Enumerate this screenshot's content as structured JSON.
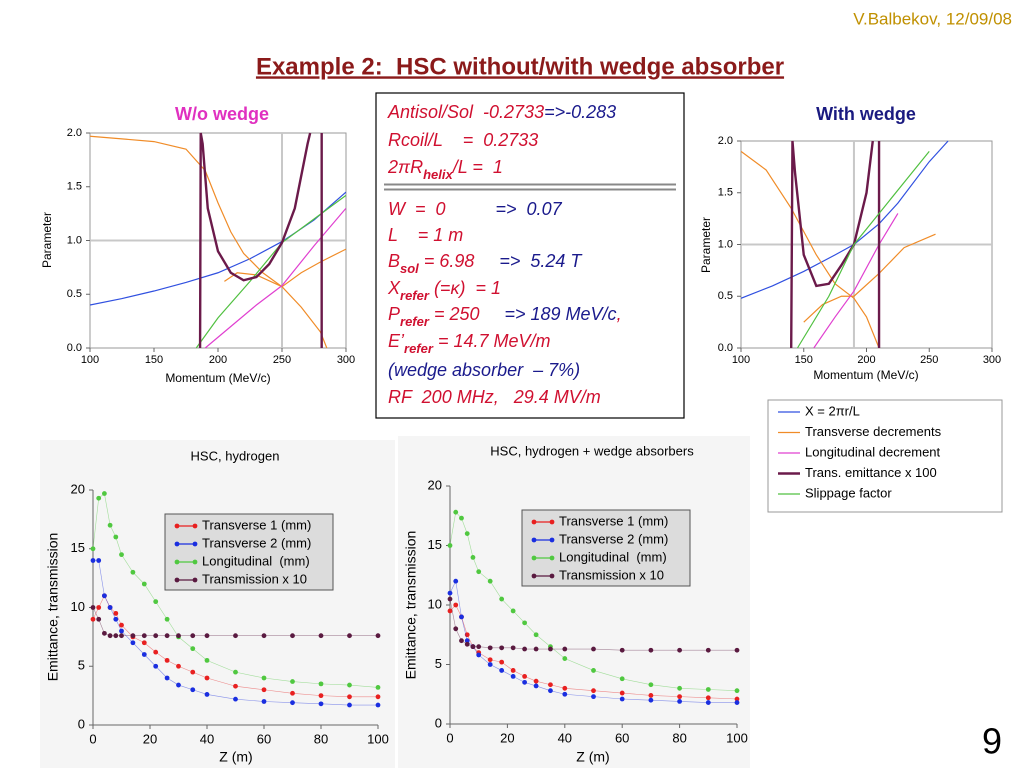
{
  "author_date": "V.Balbekov, 12/09/08",
  "slide_title": "Example 2:  HSC without/with wedge absorber",
  "page_number": "9",
  "info_box": {
    "color": "#d01030",
    "top": [
      [
        "Antisol/Sol  -0.2733",
        {
          "text": "=>-0.283",
          "color": "#1a1a8c"
        }
      ],
      [
        "Rcoil/L    =  0.2733"
      ],
      [
        "2πR",
        {
          "sub": "helix"
        },
        "/L =  1"
      ]
    ],
    "bottom": [
      [
        "W  =  0",
        {
          "text": "          =>  0.07",
          "color": "#1a1a8c"
        }
      ],
      [
        "L    = 1 m"
      ],
      [
        "B",
        {
          "sub": "sol"
        },
        " = 6.98",
        {
          "text": "     =>  5.24 T",
          "color": "#1a1a8c"
        }
      ],
      [
        "X",
        {
          "sub": "refer"
        },
        " (=κ)  = 1"
      ],
      [
        "P",
        {
          "sub": "refer"
        },
        " = 250",
        {
          "text": "     => 189 MeV/c",
          "color": "#1a1a8c"
        },
        ","
      ],
      [
        "E’",
        {
          "sub": "refer"
        },
        " = 14.7 MeV/m"
      ],
      [
        {
          "text": "(wedge absorber  – 7%)",
          "color": "#1a1a8c"
        }
      ],
      [
        "RF  200 MHz,   29.4 MV/m"
      ]
    ]
  },
  "chart_data": [
    {
      "type": "line",
      "title": "W/o wedge",
      "title_color": "#e030c0",
      "x_label": "Momentum (MeV/c)",
      "y_label": "Parameter",
      "xlim": [
        100,
        300
      ],
      "ylim": [
        0,
        2
      ],
      "xticks": [
        100,
        150,
        200,
        250,
        300
      ],
      "yticks": [
        {
          "value": 0,
          "label": "0.0"
        },
        {
          "value": 0.5,
          "label": "0.5"
        },
        {
          "value": 1,
          "label": "1.0"
        },
        {
          "value": 1.5,
          "label": "1.5"
        },
        {
          "value": 2,
          "label": "2.0"
        }
      ],
      "xref": 250,
      "yref": 1,
      "series": [
        {
          "color": "#3050e0",
          "x": [
            100,
            125,
            150,
            175,
            200,
            225,
            250,
            275,
            300
          ],
          "values": [
            0.4,
            0.46,
            0.53,
            0.61,
            0.7,
            0.83,
            0.99,
            1.19,
            1.45
          ]
        },
        {
          "color": "#f08c28",
          "x": [
            100,
            150,
            175,
            190,
            200,
            210,
            220,
            235,
            250,
            265,
            280,
            285
          ],
          "values": [
            1.97,
            1.92,
            1.85,
            1.65,
            1.35,
            1.08,
            0.88,
            0.7,
            0.57,
            0.38,
            0.15,
            0
          ]
        },
        {
          "color": "#f08c28",
          "x": [
            205,
            215,
            230,
            250,
            265,
            280,
            300
          ],
          "values": [
            0.62,
            0.7,
            0.68,
            0.57,
            0.7,
            0.8,
            0.92
          ]
        },
        {
          "color": "#e040d0",
          "x": [
            190,
            210,
            230,
            250,
            275,
            300
          ],
          "values": [
            0,
            0.2,
            0.4,
            0.58,
            0.95,
            1.3
          ]
        },
        {
          "color": "#50c040",
          "x": [
            183,
            200,
            225,
            250,
            275,
            300
          ],
          "values": [
            0,
            0.28,
            0.62,
            0.98,
            1.2,
            1.42
          ]
        },
        {
          "color": "#6b1a4a",
          "x": [
            186,
            186.5,
            188,
            192,
            200,
            210,
            220,
            230,
            240,
            250,
            260,
            270,
            272,
            276,
            281,
            281
          ],
          "values": [
            0,
            2,
            1.9,
            1.3,
            0.9,
            0.7,
            0.63,
            0.66,
            0.78,
            0.98,
            1.3,
            1.9,
            2,
            null,
            2,
            0
          ]
        }
      ]
    },
    {
      "type": "line",
      "title": "With wedge",
      "title_color": "#1a1a80",
      "x_label": "Momentum (MeV/c)",
      "y_label": "Parameter",
      "xlim": [
        100,
        300
      ],
      "ylim": [
        0,
        2
      ],
      "xticks": [
        100,
        150,
        200,
        250,
        300
      ],
      "yticks": [
        {
          "value": 0,
          "label": "0.0"
        },
        {
          "value": 0.5,
          "label": "0.5"
        },
        {
          "value": 1,
          "label": "1.0"
        },
        {
          "value": 1.5,
          "label": "1.5"
        },
        {
          "value": 2,
          "label": "2.0"
        }
      ],
      "xref": 190,
      "yref": 1,
      "series": [
        {
          "name": "X = 2πr/L",
          "color": "#3050e0",
          "x": [
            100,
            125,
            150,
            175,
            190,
            210,
            225,
            250,
            265
          ],
          "values": [
            0.48,
            0.6,
            0.74,
            0.9,
            1.0,
            1.2,
            1.4,
            1.8,
            2.0
          ]
        },
        {
          "name": "Transverse decrements",
          "color": "#f08c28",
          "x": [
            100,
            120,
            140,
            160,
            175,
            190,
            200,
            210
          ],
          "values": [
            1.9,
            1.72,
            1.35,
            0.9,
            0.62,
            0.48,
            0.3,
            0
          ]
        },
        {
          "color": "#f08c28",
          "x": [
            150,
            165,
            180,
            190,
            210,
            230,
            255
          ],
          "values": [
            0.25,
            0.42,
            0.5,
            0.5,
            0.72,
            0.97,
            1.1
          ]
        },
        {
          "name": "Longitudinal decrement",
          "color": "#e040d0",
          "x": [
            158,
            175,
            190,
            210,
            225
          ],
          "values": [
            0,
            0.3,
            0.55,
            1.0,
            1.3
          ]
        },
        {
          "name": "Trans. emittance x 100",
          "color": "#6b1a4a",
          "x": [
            140,
            141,
            143,
            150,
            160,
            170,
            180,
            190,
            200,
            205,
            207,
            210,
            210
          ],
          "values": [
            0,
            2,
            1.7,
            0.9,
            0.6,
            0.62,
            0.8,
            1.0,
            1.5,
            2,
            null,
            2,
            0
          ]
        },
        {
          "name": "Slippage factor",
          "color": "#50c040",
          "x": [
            145,
            170,
            190,
            210,
            230,
            250
          ],
          "values": [
            0,
            0.5,
            1.0,
            1.3,
            1.6,
            1.9
          ]
        }
      ]
    },
    {
      "type": "line",
      "markers": true,
      "title": "HSC, hydrogen",
      "x_label": "Z (m)",
      "y_label": "Emittance, transmission",
      "xlim": [
        0,
        100
      ],
      "ylim": [
        0,
        20
      ],
      "xticks": [
        0,
        20,
        40,
        60,
        80,
        100
      ],
      "yticks": [
        0,
        5,
        10,
        15,
        20
      ],
      "x": [
        0,
        2,
        4,
        6,
        8,
        10,
        14,
        18,
        22,
        26,
        30,
        35,
        40,
        50,
        60,
        70,
        80,
        90,
        100
      ],
      "series": [
        {
          "name": "Transverse 1 (mm)",
          "color": "#e82020",
          "values": [
            9,
            10,
            11,
            10,
            9.5,
            8.5,
            7.5,
            7,
            6.2,
            5.5,
            5,
            4.5,
            4,
            3.3,
            3,
            2.7,
            2.5,
            2.4,
            2.4
          ]
        },
        {
          "name": "Transverse 2 (mm)",
          "color": "#1a2ee0",
          "values": [
            14,
            14,
            11,
            10,
            9,
            8,
            7,
            6,
            5,
            4,
            3.4,
            3,
            2.6,
            2.2,
            2,
            1.9,
            1.8,
            1.7,
            1.7
          ]
        },
        {
          "name": "Longitudinal  (mm)",
          "color": "#50c840",
          "values": [
            15,
            19.3,
            19.7,
            17,
            16,
            14.5,
            13,
            12,
            10.5,
            9,
            7.5,
            6.5,
            5.5,
            4.5,
            4,
            3.7,
            3.5,
            3.4,
            3.2
          ]
        },
        {
          "name": "Transmission x 10",
          "color": "#5a1a40",
          "values": [
            10,
            9,
            7.8,
            7.6,
            7.6,
            7.6,
            7.6,
            7.6,
            7.6,
            7.6,
            7.6,
            7.6,
            7.6,
            7.6,
            7.6,
            7.6,
            7.6,
            7.6,
            7.6
          ]
        }
      ]
    },
    {
      "type": "line",
      "markers": true,
      "title": "HSC, hydrogen + wedge absorbers",
      "x_label": "Z (m)",
      "y_label": "Emittance, transmission",
      "xlim": [
        0,
        100
      ],
      "ylim": [
        0,
        20
      ],
      "xticks": [
        0,
        20,
        40,
        60,
        80,
        100
      ],
      "yticks": [
        0,
        5,
        10,
        15,
        20
      ],
      "x": [
        0,
        2,
        4,
        6,
        8,
        10,
        14,
        18,
        22,
        26,
        30,
        35,
        40,
        50,
        60,
        70,
        80,
        90,
        100
      ],
      "series": [
        {
          "name": "Transverse 1 (mm)",
          "color": "#e82020",
          "values": [
            9.5,
            10,
            9,
            7.5,
            6.5,
            6,
            5.4,
            5.2,
            4.5,
            4,
            3.6,
            3.3,
            3,
            2.8,
            2.6,
            2.4,
            2.3,
            2.2,
            2.1
          ]
        },
        {
          "name": "Transverse 2 (mm)",
          "color": "#1a2ee0",
          "values": [
            11,
            12,
            9,
            7,
            6.5,
            5.8,
            5,
            4.5,
            4,
            3.5,
            3.2,
            2.8,
            2.5,
            2.3,
            2.1,
            2,
            1.9,
            1.8,
            1.8
          ]
        },
        {
          "name": "Longitudinal  (mm)",
          "color": "#50c840",
          "values": [
            15,
            17.8,
            17.3,
            16,
            14,
            12.8,
            12,
            10.5,
            9.5,
            8.5,
            7.5,
            6.5,
            5.5,
            4.5,
            3.8,
            3.3,
            3,
            2.9,
            2.8
          ]
        },
        {
          "name": "Transmission x 10",
          "color": "#5a1a40",
          "values": [
            10.5,
            8,
            7,
            6.7,
            6.5,
            6.5,
            6.4,
            6.4,
            6.4,
            6.3,
            6.3,
            6.3,
            6.3,
            6.3,
            6.2,
            6.2,
            6.2,
            6.2,
            6.2
          ]
        }
      ]
    }
  ]
}
